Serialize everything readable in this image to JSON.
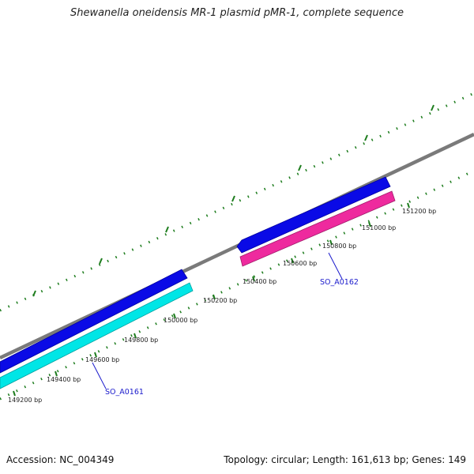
{
  "header": {
    "title": "Shewanella oneidensis MR-1 plasmid pMR-1, complete sequence"
  },
  "footer": {
    "accession": "Accession: NC_004349",
    "summary": "Topology: circular; Length: 161,613 bp; Genes: 149"
  },
  "map": {
    "backbone_color": "#808080",
    "tick_color": "#1e7d1e",
    "ticks": [
      "149200 bp",
      "149400 bp",
      "149600 bp",
      "149800 bp",
      "150000 bp",
      "150200 bp",
      "150400 bp",
      "150600 bp",
      "150800 bp",
      "151000 bp",
      "151200 bp"
    ],
    "features": [
      {
        "label": "",
        "color": "#0a0ae6",
        "strand": "forward"
      },
      {
        "label": "SO_A0161",
        "color": "#00e6e6",
        "strand": "reverse"
      },
      {
        "label": "",
        "color": "#0a0ae6",
        "strand": "forward"
      },
      {
        "label": "SO_A0162",
        "color": "#ee2a9e",
        "strand": "reverse"
      }
    ]
  }
}
